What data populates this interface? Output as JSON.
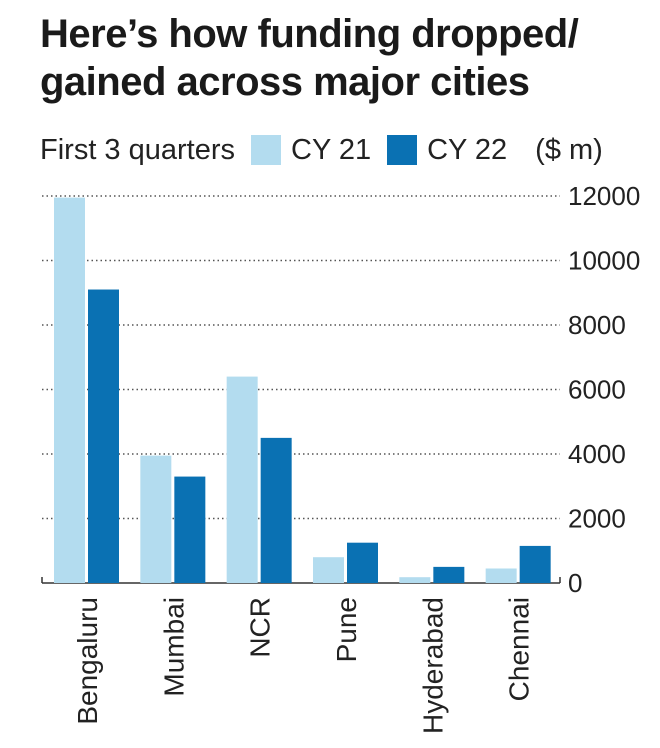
{
  "title_line1": "Here’s how funding dropped/",
  "title_line2": "gained across major cities",
  "subtitle": "First 3 quarters",
  "legend": [
    "CY 21",
    "CY 22"
  ],
  "unit": "($ m)",
  "colors": {
    "cy21": "#b3dcef",
    "cy22": "#0a71b3",
    "grid": "#555555"
  },
  "chart_data": {
    "type": "bar",
    "title": "Here’s how funding dropped/ gained across major cities",
    "subtitle": "First 3 quarters",
    "categories": [
      "Bengaluru",
      "Mumbai",
      "NCR",
      "Pune",
      "Hyderabad",
      "Chennai"
    ],
    "series": [
      {
        "name": "CY 21",
        "values": [
          11950,
          3950,
          6400,
          800,
          180,
          450
        ]
      },
      {
        "name": "CY 22",
        "values": [
          9100,
          3300,
          4500,
          1250,
          500,
          1150
        ]
      }
    ],
    "ylabel": "($ m)",
    "yticks": [
      0,
      2000,
      4000,
      6000,
      8000,
      10000,
      12000
    ],
    "ylim": [
      0,
      12000
    ],
    "grid": "dotted horizontal",
    "legend_position": "top"
  }
}
